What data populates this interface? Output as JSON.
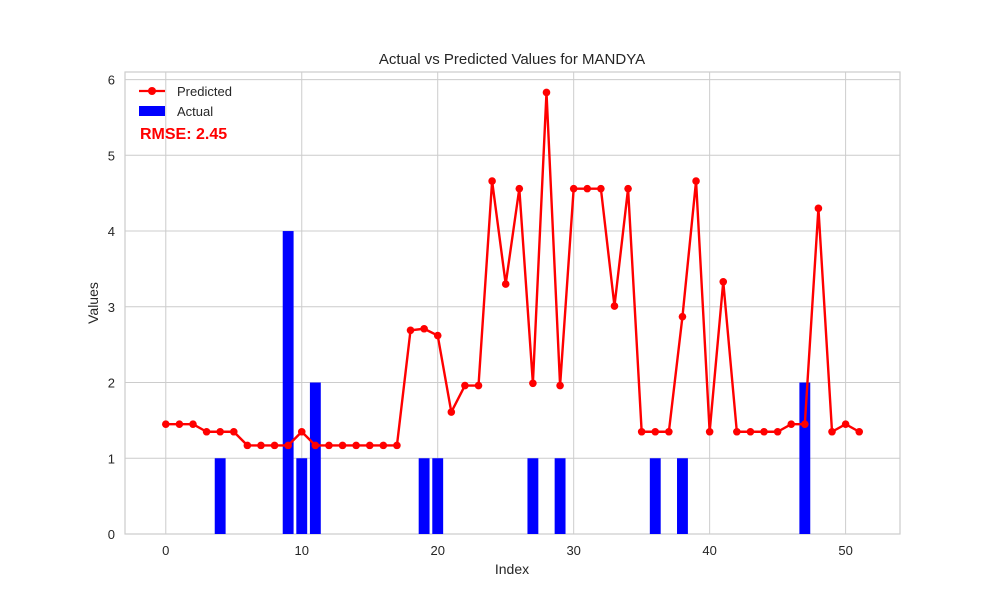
{
  "chart_data": {
    "type": "bar+line",
    "title": "Actual vs Predicted Values for MANDYA",
    "xlabel": "Index",
    "ylabel": "Values",
    "xlim": [
      -3,
      54
    ],
    "ylim": [
      0,
      6.1
    ],
    "xticks": [
      0,
      10,
      20,
      30,
      40,
      50
    ],
    "yticks": [
      0,
      1,
      2,
      3,
      4,
      5,
      6
    ],
    "grid": true,
    "legend_position": "top-left",
    "annotation": "RMSE: 2.45",
    "series": [
      {
        "name": "Predicted",
        "kind": "line",
        "color": "#ff0000",
        "x": [
          0,
          1,
          2,
          3,
          4,
          5,
          6,
          7,
          8,
          9,
          10,
          11,
          12,
          13,
          14,
          15,
          16,
          17,
          18,
          19,
          20,
          21,
          22,
          23,
          24,
          25,
          26,
          27,
          28,
          29,
          30,
          31,
          32,
          33,
          34,
          35,
          36,
          37,
          38,
          39,
          40,
          41,
          42,
          43,
          44,
          45,
          46,
          47,
          48,
          49,
          50,
          51
        ],
        "values": [
          1.45,
          1.45,
          1.45,
          1.35,
          1.35,
          1.35,
          1.17,
          1.17,
          1.17,
          1.17,
          1.35,
          1.17,
          1.17,
          1.17,
          1.17,
          1.17,
          1.17,
          1.17,
          2.69,
          2.71,
          2.62,
          1.61,
          1.96,
          1.96,
          4.66,
          3.3,
          4.56,
          1.99,
          5.83,
          1.96,
          4.56,
          4.56,
          4.56,
          3.01,
          4.56,
          1.35,
          1.35,
          1.35,
          2.87,
          4.66,
          1.35,
          3.33,
          1.35,
          1.35,
          1.35,
          1.35,
          1.45,
          1.45,
          4.3,
          1.35,
          1.45,
          1.35
        ]
      },
      {
        "name": "Actual",
        "kind": "bar",
        "color": "#0000ff",
        "x": [
          4,
          9,
          10,
          11,
          19,
          20,
          27,
          29,
          36,
          38,
          47
        ],
        "values": [
          1,
          4,
          1,
          2,
          1,
          1,
          1,
          1,
          1,
          1,
          2
        ]
      }
    ]
  }
}
